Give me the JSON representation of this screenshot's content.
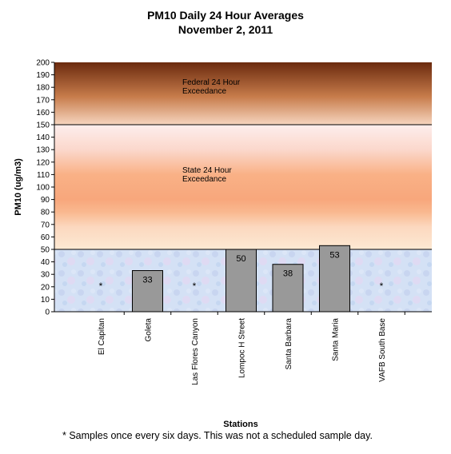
{
  "chart_data": {
    "type": "bar",
    "title": "PM10 Daily 24 Hour Averages",
    "subtitle": "November 2, 2011",
    "xlabel": "Stations",
    "ylabel": "PM10 (ug/m3)",
    "ylim": [
      0,
      200
    ],
    "ytick_step": 10,
    "categories": [
      "El Capitan",
      "Goleta",
      "Las Flores Canyon",
      "Lompoc H Street",
      "Santa Barbara",
      "Santa Maria",
      "VAFB South Base"
    ],
    "values": [
      null,
      33,
      null,
      50,
      38,
      53,
      null
    ],
    "data_labels": [
      "*",
      "33",
      "*",
      "50",
      "38",
      "53",
      "*"
    ],
    "bands": [
      {
        "label_lines": [
          "Federal 24 Hour",
          "Exceedance"
        ],
        "from": 150,
        "to": 200,
        "colors": [
          "#f6d5bf",
          "#c77c4b",
          "#6b2a0e"
        ]
      },
      {
        "label_lines": [
          "State 24 Hour",
          "Exceedance"
        ],
        "from": 50,
        "to": 150,
        "colors": [
          "#fbe6cf",
          "#f8ab7e",
          "#fde9e4"
        ]
      },
      {
        "from": 0,
        "to": 50,
        "colors": [
          "#cfe0f4",
          "#dcd2ef"
        ]
      }
    ],
    "bar_color": "#999999",
    "grid": false,
    "legend": "none"
  },
  "footnote": "*  Samples once every six days.  This was not a scheduled sample day."
}
